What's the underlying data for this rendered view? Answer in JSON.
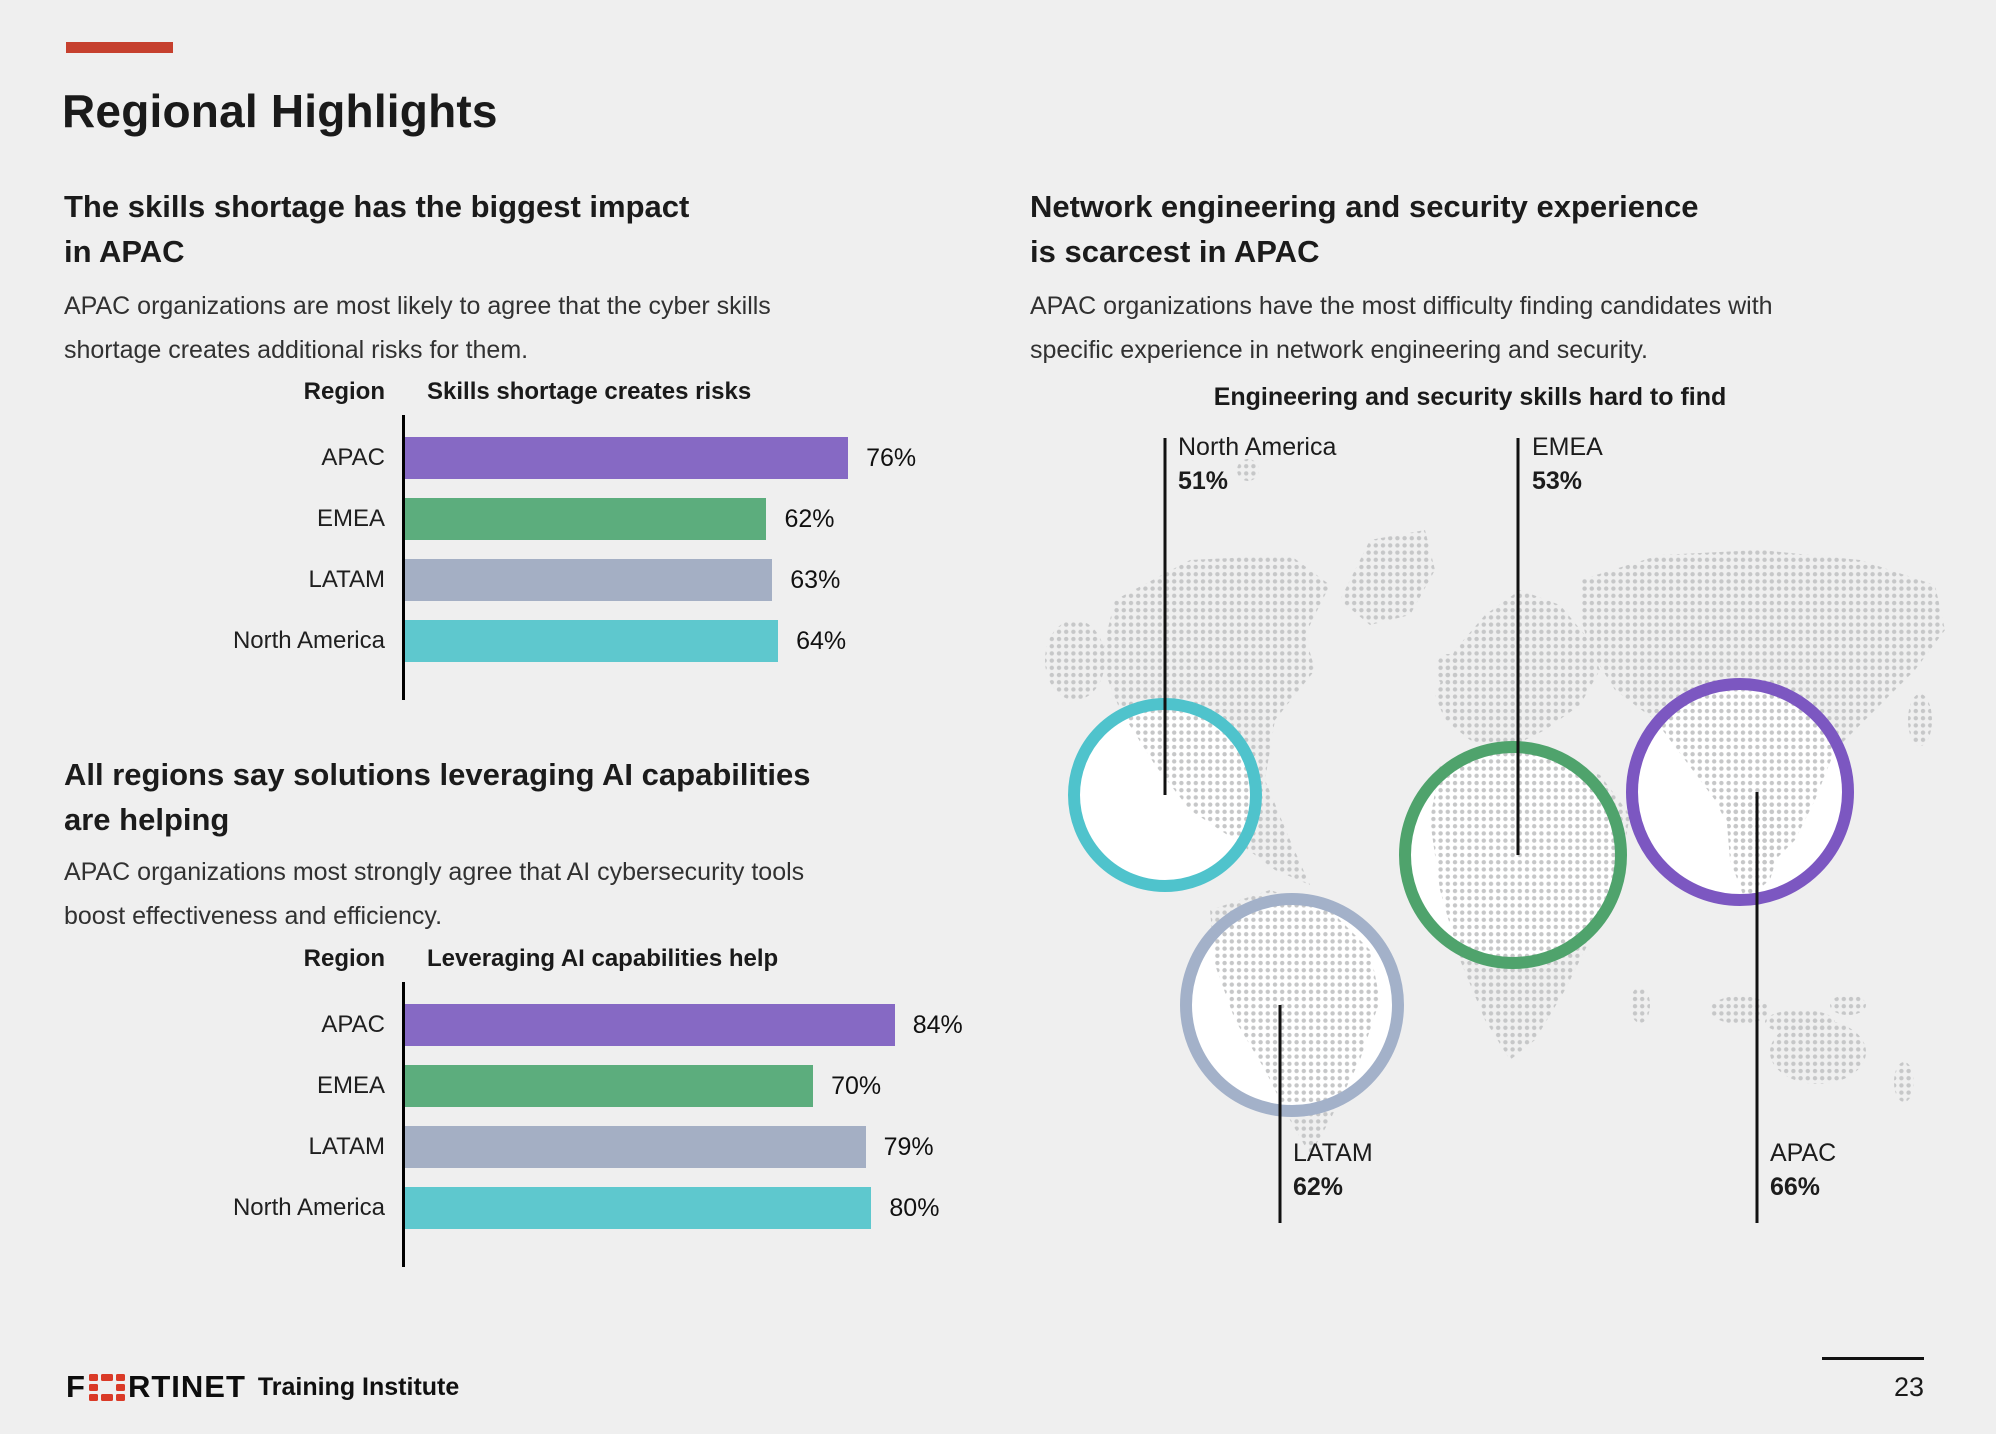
{
  "page": {
    "background": "#efefef",
    "accent_color": "#c6402e",
    "title": "Regional Highlights",
    "page_number": "23"
  },
  "footer": {
    "logo_prefix": "F",
    "logo_suffix": "RTINET",
    "logo_icon_color": "#da3a27",
    "brand_suffix": "Training Institute"
  },
  "left_column": {
    "section1": {
      "title_lines": [
        "The skills shortage has the biggest impact",
        "in APAC"
      ],
      "subtitle_lines": [
        "APAC organizations are most likely to agree that the cyber skills",
        "shortage creates additional risks for them."
      ]
    },
    "section2": {
      "title_lines": [
        "All regions say solutions leveraging AI capabilities",
        "are helping"
      ],
      "subtitle_lines": [
        "APAC organizations most strongly agree that AI cybersecurity tools",
        "boost effectiveness and efficiency."
      ]
    }
  },
  "right_column": {
    "title_lines": [
      "Network engineering and security experience",
      "is scarcest in APAC"
    ],
    "subtitle_lines": [
      "APAC organizations have the most difficulty finding candidates with",
      "specific experience in network engineering and security."
    ]
  },
  "chart_data": [
    {
      "type": "bar",
      "orientation": "horizontal",
      "region_header": "Region",
      "metric_header": "Skills shortage creates risks",
      "categories": [
        "APAC",
        "EMEA",
        "LATAM",
        "North America"
      ],
      "values": [
        76,
        62,
        63,
        64
      ],
      "unit": "%",
      "xlim": [
        0,
        100
      ],
      "grid": false,
      "colors": [
        "#8669c4",
        "#5cad7d",
        "#a4afc4",
        "#5ec8ce"
      ]
    },
    {
      "type": "bar",
      "orientation": "horizontal",
      "region_header": "Region",
      "metric_header": "Leveraging AI capabilities help",
      "categories": [
        "APAC",
        "EMEA",
        "LATAM",
        "North America"
      ],
      "values": [
        84,
        70,
        79,
        80
      ],
      "unit": "%",
      "xlim": [
        0,
        100
      ],
      "grid": false,
      "colors": [
        "#8669c4",
        "#5cad7d",
        "#a4afc4",
        "#5ec8ce"
      ]
    },
    {
      "type": "map-bubbles",
      "title": "Engineering and security skills hard to find",
      "points": [
        {
          "region": "North America",
          "value": 51,
          "unit": "%",
          "ring_color": "#4fc3cc",
          "label_position": "top-left"
        },
        {
          "region": "EMEA",
          "value": 53,
          "unit": "%",
          "ring_color": "#4fa36c",
          "label_position": "top-center"
        },
        {
          "region": "LATAM",
          "value": 62,
          "unit": "%",
          "ring_color": "#a3b1c9",
          "label_position": "bottom-left"
        },
        {
          "region": "APAC",
          "value": 66,
          "unit": "%",
          "ring_color": "#7c57c1",
          "label_position": "bottom-right"
        }
      ]
    }
  ]
}
